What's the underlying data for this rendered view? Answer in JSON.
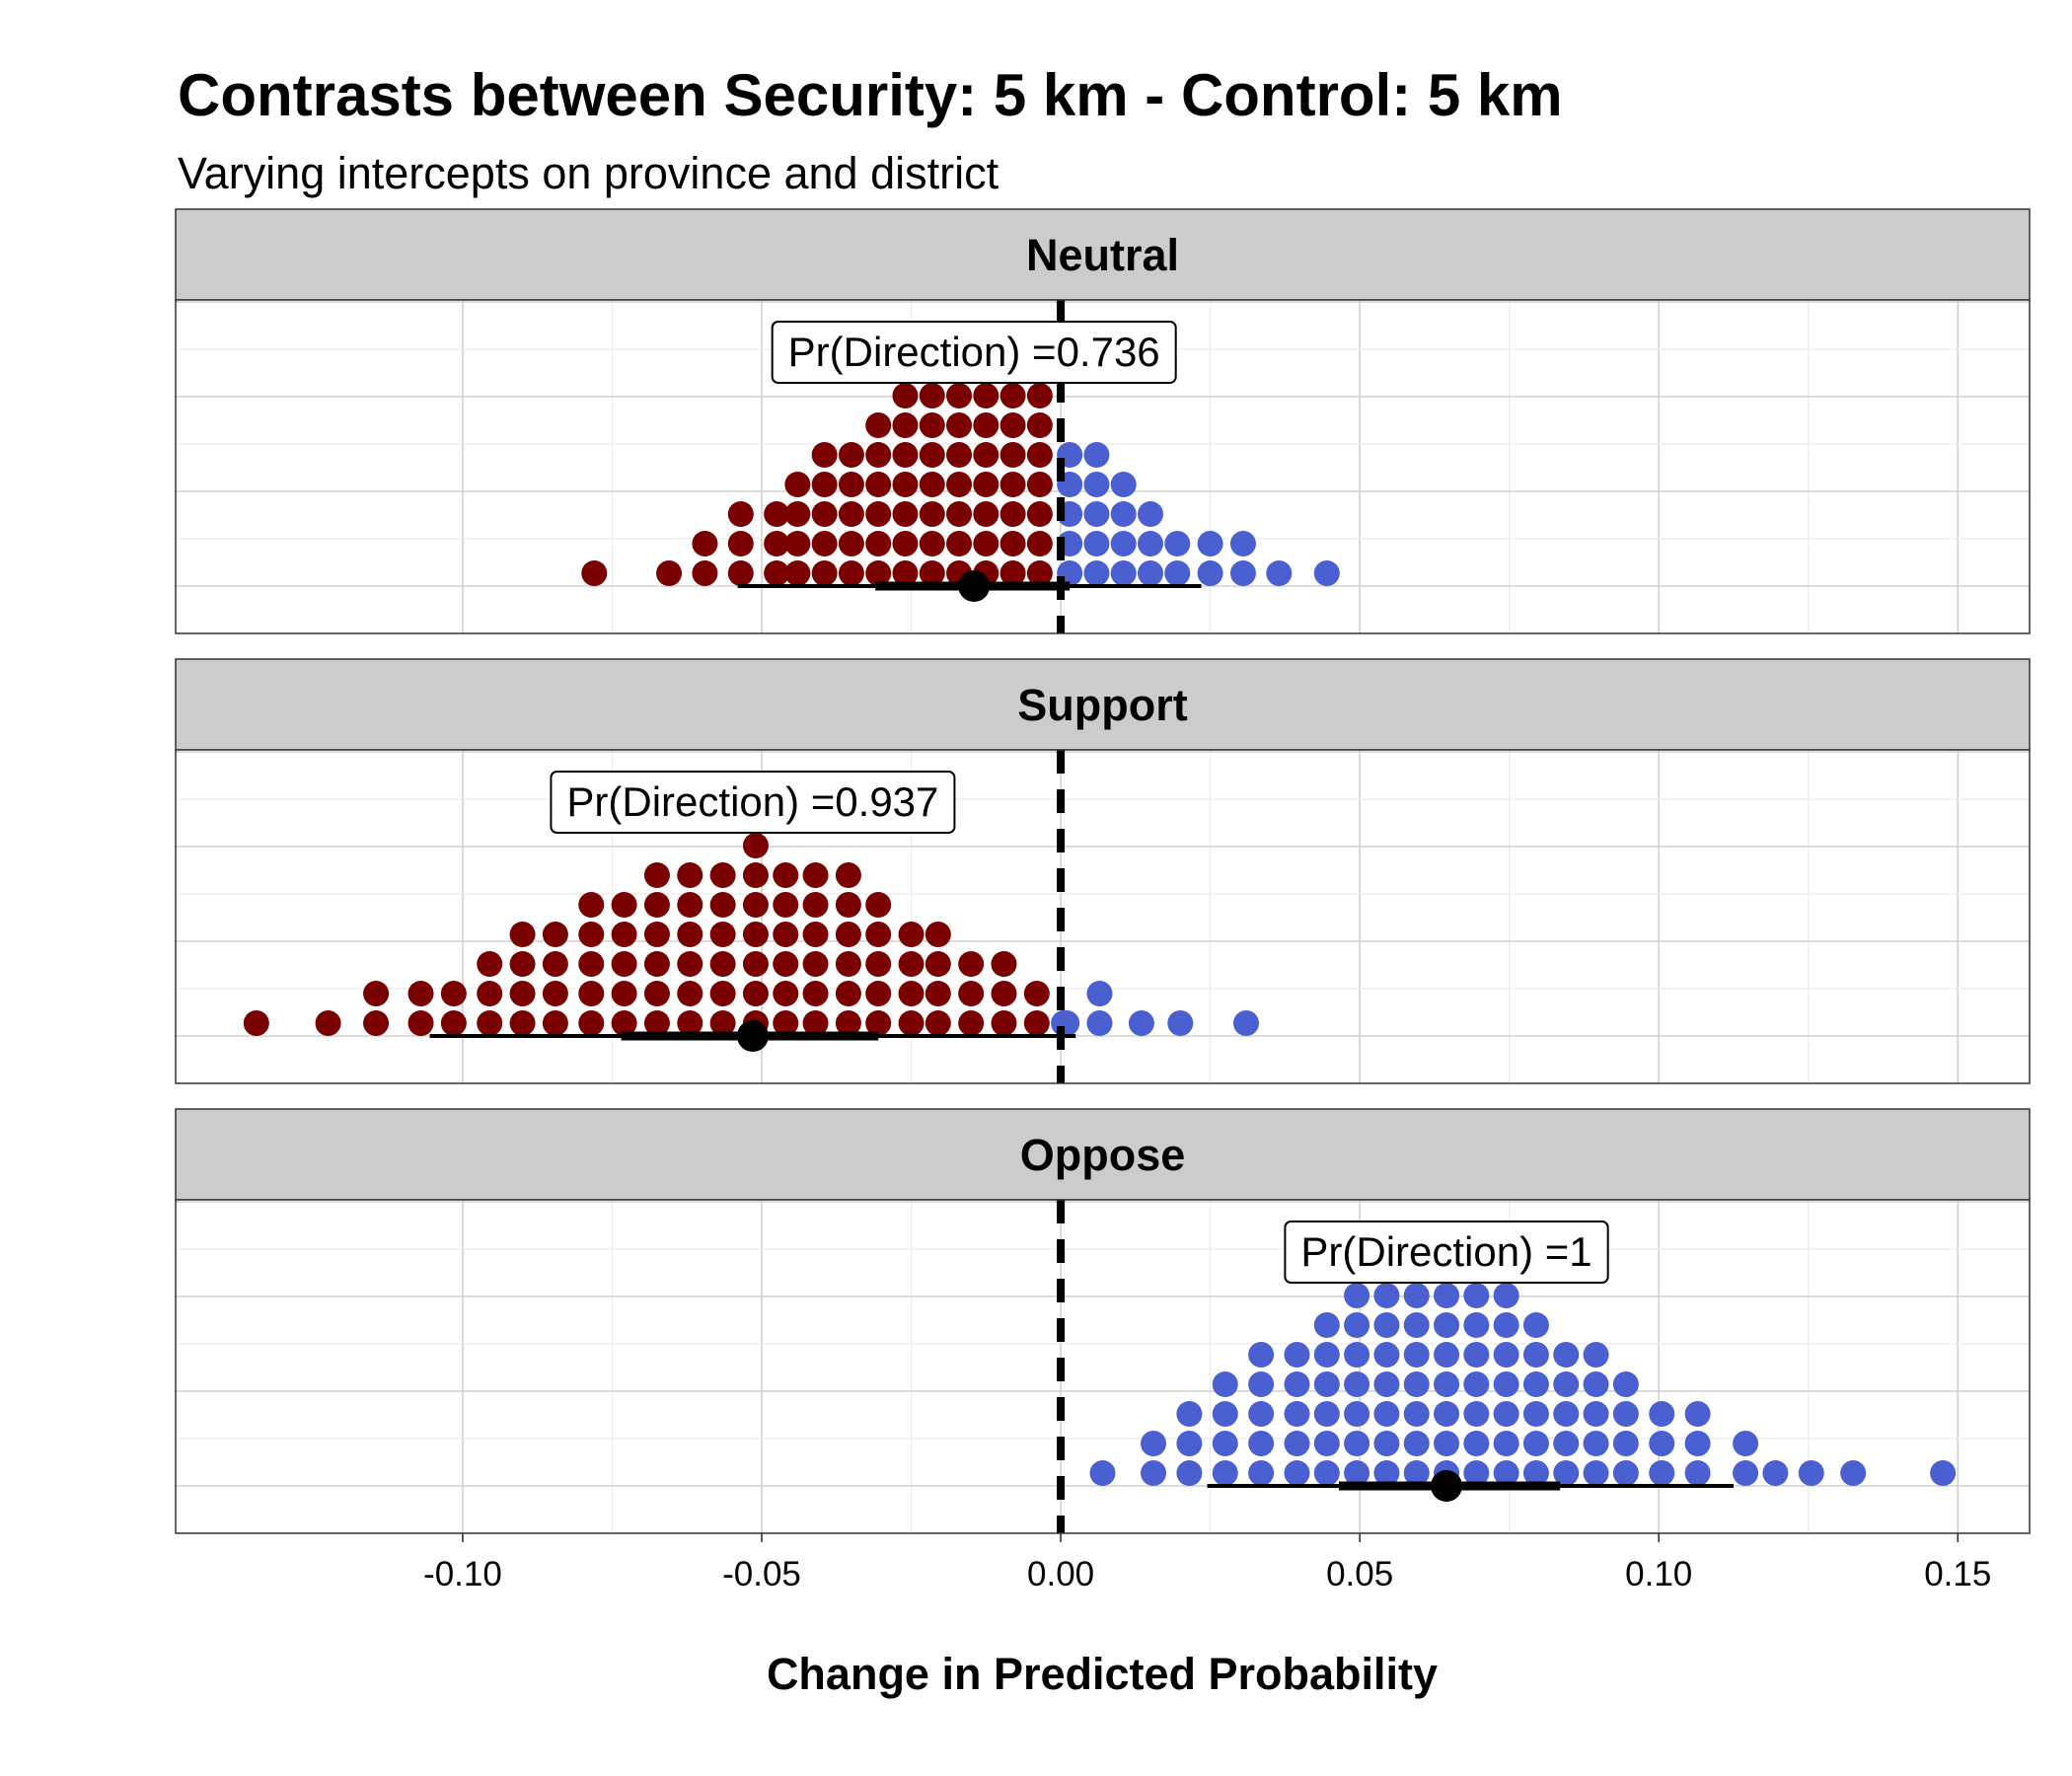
{
  "title": "Contrasts between Security: 5 km - Control: 5 km",
  "subtitle": "Varying intercepts on province and district",
  "chart_data": {
    "type": "dotplot",
    "xlabel": "Change in Predicted Probability",
    "xlim": [
      -0.148,
      0.162
    ],
    "x_ticks": [
      -0.1,
      -0.05,
      0.0,
      0.05,
      0.1,
      0.15
    ],
    "x_tick_labels": [
      "-0.10",
      "-0.05",
      "0.00",
      "0.05",
      "0.10",
      "0.15"
    ],
    "reference_line": 0,
    "grid": true,
    "colors": {
      "negative": "#7a0000",
      "positive": "#4a5fd0",
      "strip": "#cccccc",
      "interval": "#000000"
    },
    "panels": [
      {
        "label": "Neutral",
        "annotation": "Pr(Direction) =0.736",
        "point": -0.0145,
        "interval_66": [
          -0.031,
          0.0015
        ],
        "interval_95": [
          -0.054,
          0.0235
        ],
        "dot_columns": [
          {
            "x": -0.078,
            "count": 1
          },
          {
            "x": -0.0655,
            "count": 1
          },
          {
            "x": -0.0595,
            "count": 2
          },
          {
            "x": -0.0535,
            "count": 3
          },
          {
            "x": -0.0475,
            "count": 3
          },
          {
            "x": -0.044,
            "count": 4
          },
          {
            "x": -0.0395,
            "count": 5
          },
          {
            "x": -0.035,
            "count": 5
          },
          {
            "x": -0.0305,
            "count": 6
          },
          {
            "x": -0.026,
            "count": 7
          },
          {
            "x": -0.0215,
            "count": 7
          },
          {
            "x": -0.017,
            "count": 7
          },
          {
            "x": -0.0125,
            "count": 8
          },
          {
            "x": -0.008,
            "count": 8
          },
          {
            "x": -0.0035,
            "count": 7
          },
          {
            "x": 0.0015,
            "count": 5
          },
          {
            "x": 0.006,
            "count": 5
          },
          {
            "x": 0.0105,
            "count": 4
          },
          {
            "x": 0.015,
            "count": 3
          },
          {
            "x": 0.0195,
            "count": 2
          },
          {
            "x": 0.025,
            "count": 2
          },
          {
            "x": 0.0305,
            "count": 2
          },
          {
            "x": 0.0365,
            "count": 1
          },
          {
            "x": 0.0445,
            "count": 1
          }
        ]
      },
      {
        "label": "Support",
        "annotation": "Pr(Direction) =0.937",
        "point": -0.0515,
        "interval_66": [
          -0.0735,
          -0.0305
        ],
        "interval_95": [
          -0.1055,
          0.0025
        ],
        "dot_columns": [
          {
            "x": -0.1345,
            "count": 1
          },
          {
            "x": -0.1225,
            "count": 1
          },
          {
            "x": -0.1145,
            "count": 2
          },
          {
            "x": -0.107,
            "count": 2
          },
          {
            "x": -0.1015,
            "count": 2
          },
          {
            "x": -0.0955,
            "count": 3
          },
          {
            "x": -0.09,
            "count": 4
          },
          {
            "x": -0.0845,
            "count": 4
          },
          {
            "x": -0.0785,
            "count": 5
          },
          {
            "x": -0.073,
            "count": 5
          },
          {
            "x": -0.0675,
            "count": 6
          },
          {
            "x": -0.062,
            "count": 6
          },
          {
            "x": -0.0565,
            "count": 6
          },
          {
            "x": -0.051,
            "count": 7
          },
          {
            "x": -0.046,
            "count": 6
          },
          {
            "x": -0.041,
            "count": 6
          },
          {
            "x": -0.0355,
            "count": 6
          },
          {
            "x": -0.0305,
            "count": 5
          },
          {
            "x": -0.025,
            "count": 4
          },
          {
            "x": -0.0205,
            "count": 4
          },
          {
            "x": -0.015,
            "count": 3
          },
          {
            "x": -0.0095,
            "count": 3
          },
          {
            "x": -0.004,
            "count": 2
          },
          {
            "x": 0.001,
            "count": 1
          },
          {
            "x": 0.0005,
            "count": 1,
            "color": "positive"
          },
          {
            "x": 0.0065,
            "count": 2,
            "color": "positive"
          },
          {
            "x": 0.0135,
            "count": 1,
            "color": "positive"
          },
          {
            "x": 0.02,
            "count": 1,
            "color": "positive"
          },
          {
            "x": 0.031,
            "count": 1,
            "color": "positive"
          }
        ]
      },
      {
        "label": "Oppose",
        "annotation": "Pr(Direction) =1",
        "point": 0.0645,
        "interval_66": [
          0.0465,
          0.0835
        ],
        "interval_95": [
          0.0245,
          0.1125
        ],
        "dot_columns": [
          {
            "x": 0.007,
            "count": 1
          },
          {
            "x": 0.0155,
            "count": 2
          },
          {
            "x": 0.0215,
            "count": 3
          },
          {
            "x": 0.0275,
            "count": 4
          },
          {
            "x": 0.0335,
            "count": 5
          },
          {
            "x": 0.0395,
            "count": 5
          },
          {
            "x": 0.0445,
            "count": 6
          },
          {
            "x": 0.0495,
            "count": 7
          },
          {
            "x": 0.0545,
            "count": 7
          },
          {
            "x": 0.0595,
            "count": 7
          },
          {
            "x": 0.0645,
            "count": 7
          },
          {
            "x": 0.0695,
            "count": 7
          },
          {
            "x": 0.0745,
            "count": 7
          },
          {
            "x": 0.0795,
            "count": 6
          },
          {
            "x": 0.0845,
            "count": 5
          },
          {
            "x": 0.0895,
            "count": 5
          },
          {
            "x": 0.0945,
            "count": 4
          },
          {
            "x": 0.1005,
            "count": 3
          },
          {
            "x": 0.1065,
            "count": 3
          },
          {
            "x": 0.1145,
            "count": 2
          },
          {
            "x": 0.1195,
            "count": 1
          },
          {
            "x": 0.1255,
            "count": 1
          },
          {
            "x": 0.1325,
            "count": 1
          },
          {
            "x": 0.1475,
            "count": 1
          }
        ]
      }
    ]
  }
}
